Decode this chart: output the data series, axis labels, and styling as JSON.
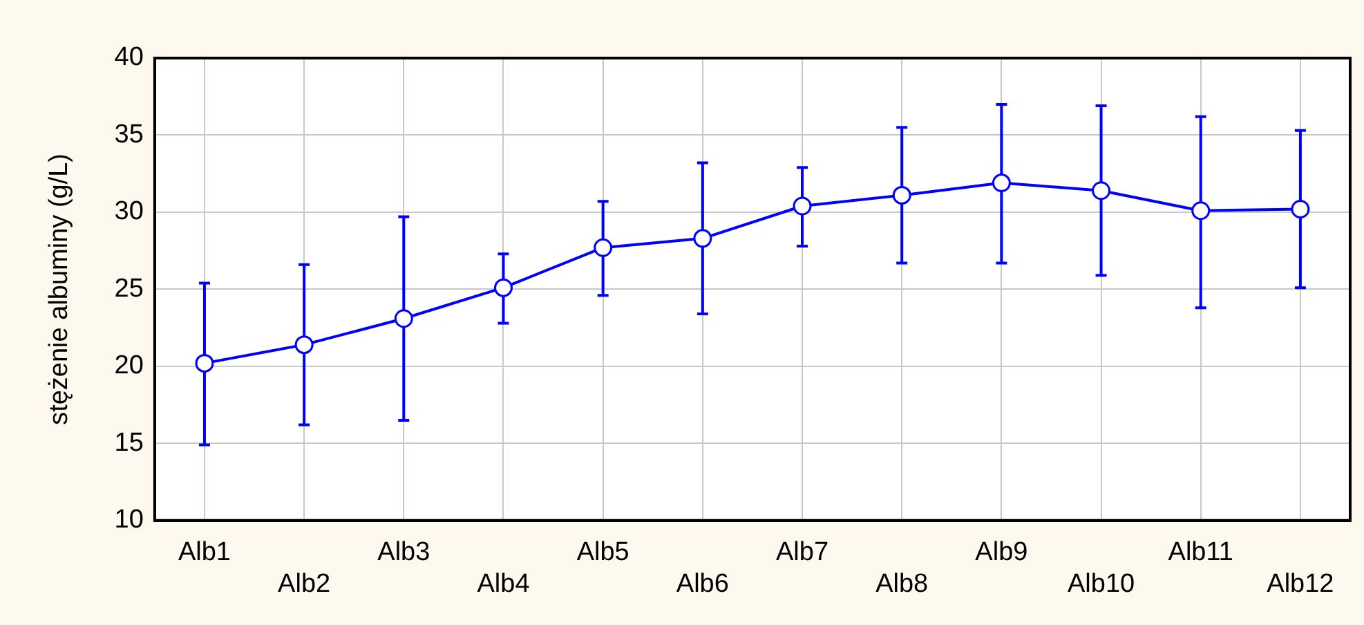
{
  "chart_data": {
    "type": "line",
    "ylabel": "stężenie albuminy (g/L)",
    "categories": [
      "Alb1",
      "Alb2",
      "Alb3",
      "Alb4",
      "Alb5",
      "Alb6",
      "Alb7",
      "Alb8",
      "Alb9",
      "Alb10",
      "Alb11",
      "Alb12"
    ],
    "series": [
      {
        "color": "#0000ff",
        "values": [
          20.2,
          21.4,
          23.1,
          25.1,
          27.7,
          28.3,
          30.4,
          31.1,
          31.9,
          31.4,
          30.1,
          30.2
        ],
        "errors": [
          [
            14.9,
            25.4
          ],
          [
            16.2,
            26.6
          ],
          [
            16.5,
            29.7
          ],
          [
            22.8,
            27.3
          ],
          [
            24.6,
            30.7
          ],
          [
            23.4,
            33.2
          ],
          [
            27.8,
            32.9
          ],
          [
            26.7,
            35.5
          ],
          [
            26.7,
            37.0
          ],
          [
            25.9,
            36.9
          ],
          [
            23.8,
            36.2
          ],
          [
            25.1,
            35.3
          ]
        ]
      }
    ],
    "ylim": [
      10,
      40
    ],
    "yticks": [
      10,
      15,
      20,
      25,
      30,
      35,
      40
    ],
    "grid": true,
    "legend": false,
    "marker": "circle",
    "line_style": "solid"
  }
}
